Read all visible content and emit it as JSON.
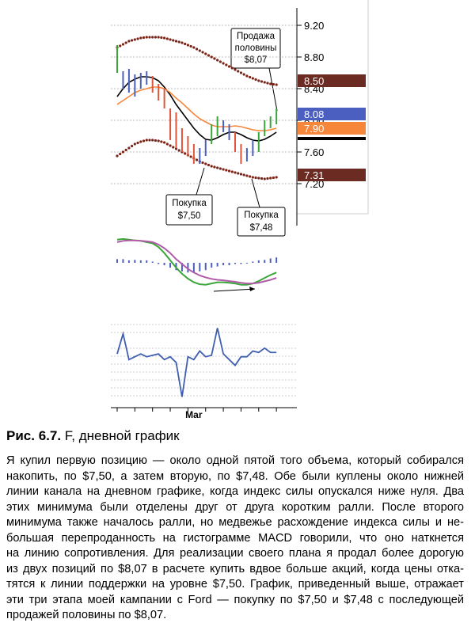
{
  "figure": {
    "price_panel": {
      "ylim": [
        6.7,
        9.4
      ],
      "yticks": [
        {
          "value": 9.2,
          "label": "9.20"
        },
        {
          "value": 8.8,
          "label": "8.80"
        },
        {
          "value": 8.4,
          "label": "8.40"
        },
        {
          "value": 8.0,
          "label": "8.00"
        },
        {
          "value": 7.6,
          "label": "7.60"
        },
        {
          "value": 7.2,
          "label": "7.20"
        }
      ],
      "high": [
        8.95,
        8.62,
        8.65,
        8.58,
        8.6,
        8.62,
        8.56,
        8.46,
        8.4,
        8.15,
        8.1,
        7.9,
        7.8,
        7.7,
        7.65,
        7.75,
        7.95,
        8.05,
        8.0,
        7.95,
        7.85,
        7.7,
        7.65,
        7.75,
        7.85,
        8.0,
        8.05,
        8.15
      ],
      "low": [
        8.6,
        8.4,
        8.35,
        8.3,
        8.4,
        8.45,
        8.35,
        8.25,
        8.15,
        7.75,
        7.65,
        7.6,
        7.55,
        7.45,
        7.45,
        7.55,
        7.7,
        7.8,
        7.85,
        7.75,
        7.6,
        7.45,
        7.48,
        7.55,
        7.6,
        7.8,
        7.9,
        7.95
      ],
      "bar_colors": [
        "#3aa63a",
        "#4a5fc0",
        "#4a5fc0",
        "#4a5fc0",
        "#4a5fc0",
        "#4a5fc0",
        "#e0553a",
        "#e0553a",
        "#e0553a",
        "#e0553a",
        "#e0553a",
        "#e0553a",
        "#e0553a",
        "#e0553a",
        "#4a5fc0",
        "#4a5fc0",
        "#3aa63a",
        "#3aa63a",
        "#4a5fc0",
        "#4a5fc0",
        "#e0553a",
        "#e0553a",
        "#4a5fc0",
        "#4a5fc0",
        "#3aa63a",
        "#3aa63a",
        "#3aa63a",
        "#3aa63a"
      ],
      "lines": [
        {
          "color": "#000000",
          "style": "solid",
          "values": [
            8.3,
            8.4,
            8.48,
            8.52,
            8.55,
            8.55,
            8.54,
            8.5,
            8.42,
            8.32,
            8.2,
            8.1,
            8.0,
            7.9,
            7.82,
            7.76,
            7.75,
            7.78,
            7.82,
            7.85,
            7.85,
            7.82,
            7.78,
            7.75,
            7.74,
            7.76,
            7.8,
            7.85
          ]
        },
        {
          "color": "#f5863a",
          "style": "solid",
          "values": [
            8.2,
            8.25,
            8.3,
            8.35,
            8.38,
            8.4,
            8.42,
            8.42,
            8.4,
            8.35,
            8.28,
            8.22,
            8.15,
            8.08,
            8.02,
            7.98,
            7.94,
            7.92,
            7.92,
            7.92,
            7.93,
            7.92,
            7.9,
            7.88,
            7.87,
            7.87,
            7.88,
            7.9
          ]
        },
        {
          "color": "#7a2418",
          "style": "dots",
          "values": [
            8.92,
            8.96,
            9.0,
            9.02,
            9.04,
            9.05,
            9.05,
            9.05,
            9.04,
            9.02,
            9.0,
            8.98,
            8.95,
            8.92,
            8.88,
            8.84,
            8.8,
            8.76,
            8.72,
            8.68,
            8.64,
            8.6,
            8.56,
            8.53,
            8.5,
            8.48,
            8.46,
            8.45
          ]
        },
        {
          "color": "#7a2418",
          "style": "dots",
          "values": [
            7.55,
            7.6,
            7.65,
            7.7,
            7.73,
            7.75,
            7.75,
            7.74,
            7.72,
            7.68,
            7.64,
            7.6,
            7.56,
            7.52,
            7.48,
            7.45,
            7.42,
            7.4,
            7.38,
            7.36,
            7.34,
            7.32,
            7.3,
            7.28,
            7.27,
            7.26,
            7.27,
            7.28
          ]
        }
      ],
      "tags": [
        {
          "value": 8.5,
          "label": "8.50",
          "color": "#6b2a22"
        },
        {
          "value": 8.08,
          "label": "8.08",
          "color": "#4a5fc0"
        },
        {
          "value": 7.9,
          "label": "7.90",
          "color": "#f5863a"
        },
        {
          "value": 7.31,
          "label": "7.31",
          "color": "#6b2a22"
        }
      ],
      "marker_line": {
        "value": 7.77,
        "color": "#000000"
      }
    },
    "macd_panel": {
      "ylim": [
        -1.3,
        1.3
      ],
      "histogram": [
        0.15,
        0.15,
        0.1,
        0.12,
        0.1,
        0.1,
        0.05,
        -0.05,
        -0.1,
        -0.2,
        -0.3,
        -0.35,
        -0.4,
        -0.4,
        -0.35,
        -0.3,
        -0.2,
        -0.15,
        -0.1,
        -0.1,
        -0.05,
        -0.05,
        0.0,
        0.05,
        0.1,
        0.12,
        0.18,
        0.22
      ],
      "lines": [
        {
          "color": "#3aa63a",
          "values": [
            0.95,
            0.98,
            0.95,
            0.92,
            0.9,
            0.85,
            0.8,
            0.65,
            0.4,
            0.1,
            -0.2,
            -0.45,
            -0.65,
            -0.8,
            -0.88,
            -0.9,
            -0.85,
            -0.8,
            -0.8,
            -0.82,
            -0.85,
            -0.9,
            -0.9,
            -0.85,
            -0.75,
            -0.62,
            -0.5,
            -0.4
          ]
        },
        {
          "color": "#b05aa8",
          "values": [
            0.85,
            0.9,
            0.92,
            0.92,
            0.9,
            0.88,
            0.85,
            0.75,
            0.6,
            0.4,
            0.15,
            -0.05,
            -0.25,
            -0.4,
            -0.52,
            -0.6,
            -0.66,
            -0.7,
            -0.72,
            -0.75,
            -0.78,
            -0.82,
            -0.85,
            -0.85,
            -0.82,
            -0.76,
            -0.7,
            -0.62
          ]
        }
      ]
    },
    "force_panel": {
      "ylim": [
        -1.6,
        1.3
      ],
      "color": "#3f5fb0",
      "values": [
        0,
        0.7,
        -0.2,
        -0.1,
        0,
        -0.1,
        -0.05,
        0,
        -0.2,
        -0.1,
        -0.3,
        -1.5,
        -0.1,
        -0.2,
        0.1,
        -0.1,
        -0.05,
        0.9,
        0,
        -0.2,
        -0.4,
        -0.1,
        -0.1,
        0.1,
        0.05,
        0.2,
        0.05,
        0.05
      ]
    },
    "x_labels": [
      null,
      null,
      null,
      null,
      null,
      null,
      null,
      null,
      null,
      null,
      null,
      null,
      null,
      "Mar",
      null,
      null,
      null,
      null,
      null,
      null,
      null,
      null,
      null,
      null,
      null,
      null,
      null,
      null
    ],
    "annotations": [
      {
        "lines": [
          "Продажа",
          "половины",
          "$8,07"
        ]
      },
      {
        "lines": [
          "Покупка",
          "$7,50"
        ]
      },
      {
        "lines": [
          "Покупка",
          "$7,48"
        ]
      }
    ]
  },
  "caption": {
    "label": "Рис. 6.7.",
    "text": "F, дневной график"
  },
  "body": {
    "lines": [
      "Я купил первую позицию — около одной пятой того объема, который собирался",
      "накопить, по $7,50, а затем вторую, по $7,48. Обе были куплены около нижней",
      "линии канала на дневном графике, когда индекс силы опускался ниже нуля. Два",
      "этих минимума были отделены друг от друга коротким ралли. После второго",
      "минимума также началось ралли, но медвежье расхождение индекса силы и не-",
      "большая перепроданность на гистограмме MACD говорили, что оно наткнется",
      "на линию сопротивления. Для реализации своего плана я продал более дорогую",
      "из двух позиций по $8,07 в расчете купить вдвое больше акций, когда цены отка-",
      "тятся к линии поддержки на уровне $7,50. График, приведенный выше, отражает",
      "эти три этапа моей кампании с Ford — покупку по $7,50 и $7,48 с последующей",
      "продажей половины по $8,07."
    ]
  }
}
